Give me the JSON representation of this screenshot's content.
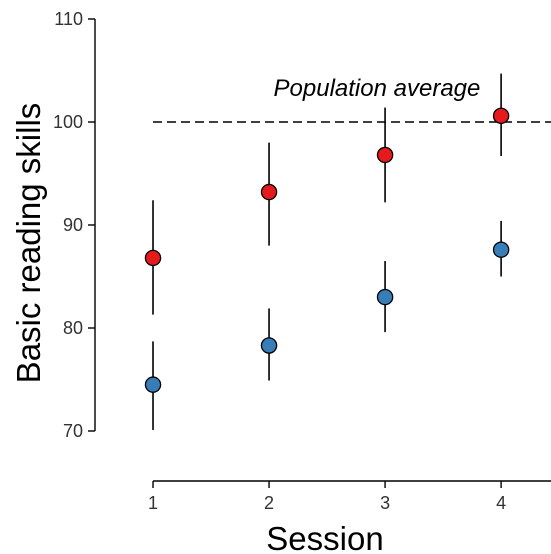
{
  "chart_data": {
    "type": "scatter",
    "title": "",
    "xlabel": "Session",
    "ylabel": "Basic reading skills",
    "xlim": [
      0.5,
      4.43
    ],
    "ylim": [
      65,
      110
    ],
    "x_ticks": [
      1,
      2,
      3,
      4
    ],
    "y_ticks": [
      70,
      80,
      90,
      100,
      110
    ],
    "grid": false,
    "legend": "none",
    "reference_line": {
      "y": 100,
      "style": "dashed"
    },
    "annotations": [
      {
        "text": "Population average",
        "x": 2.93,
        "y": 103.3
      }
    ],
    "series": [
      {
        "color": "#E41A1C",
        "points": [
          {
            "x": 1,
            "y": 86.8,
            "low": 81.3,
            "high": 92.4
          },
          {
            "x": 2,
            "y": 93.2,
            "low": 88.0,
            "high": 98.0
          },
          {
            "x": 3,
            "y": 96.8,
            "low": 92.2,
            "high": 101.4
          },
          {
            "x": 4,
            "y": 100.6,
            "low": 96.7,
            "high": 104.7
          }
        ]
      },
      {
        "color": "#377EB8",
        "points": [
          {
            "x": 1,
            "y": 74.5,
            "low": 70.1,
            "high": 78.7
          },
          {
            "x": 2,
            "y": 78.3,
            "low": 74.9,
            "high": 81.9
          },
          {
            "x": 3,
            "y": 83.0,
            "low": 79.6,
            "high": 86.5
          },
          {
            "x": 4,
            "y": 87.6,
            "low": 85.0,
            "high": 90.4
          }
        ]
      }
    ]
  }
}
